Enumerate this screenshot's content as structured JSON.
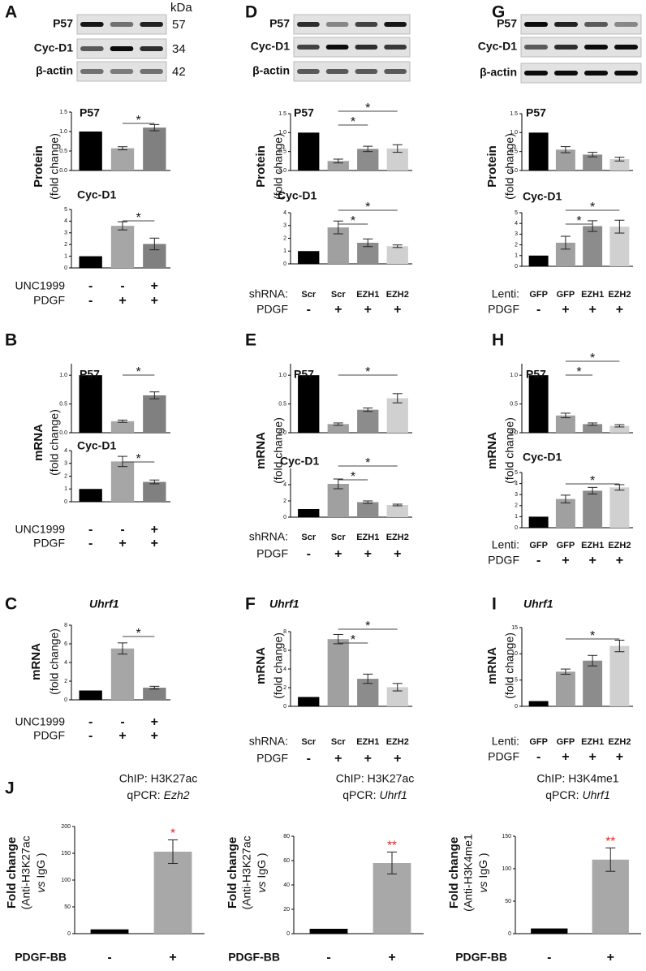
{
  "blots": [
    {
      "labels": [
        "P57",
        "Cyc-D1",
        "β-actin"
      ],
      "kda_header": "kDa",
      "kda": [
        "57",
        "34",
        "42"
      ]
    },
    {
      "labels": [
        "P57",
        "Cyc-D1",
        "β-actin"
      ]
    },
    {
      "labels": [
        "P57",
        "Cyc-D1",
        "β-actin"
      ]
    }
  ],
  "chart_data": [
    {
      "type": "bar",
      "panel": "A",
      "title": "P57",
      "ylabel": [
        "Protein",
        "(fold change)"
      ],
      "values": [
        1.0,
        0.57,
        1.1
      ],
      "errors": [
        null,
        0.04,
        0.08
      ],
      "colors": [
        "#000000",
        "#a6a6a6",
        "#808080"
      ],
      "ylim": [
        0,
        1.5
      ],
      "yticks": [
        {
          "value": 0,
          "label": "0.0"
        },
        {
          "value": 0.5,
          "label": "0.5"
        },
        {
          "value": 1.0,
          "label": "1.0"
        },
        {
          "value": 1.5,
          "label": "1.5"
        }
      ],
      "significance": [
        {
          "from": 1,
          "to": 2,
          "label": "*"
        }
      ]
    },
    {
      "type": "bar",
      "title": "Cyc-D1",
      "values": [
        1.0,
        3.6,
        2.05
      ],
      "errors": [
        null,
        0.35,
        0.5
      ],
      "colors": [
        "#000000",
        "#a6a6a6",
        "#808080"
      ],
      "ylim": [
        0,
        5
      ],
      "yticks": [
        0,
        1,
        2,
        3,
        4,
        5
      ],
      "significance": [
        {
          "from": 1,
          "to": 2,
          "label": "*"
        }
      ],
      "conditions": [
        {
          "label": "UNC1999",
          "values": [
            "-",
            "-",
            "+"
          ]
        },
        {
          "label": "PDGF",
          "values": [
            "-",
            "+",
            "+"
          ]
        }
      ]
    },
    {
      "type": "bar",
      "panel": "D",
      "title": "P57",
      "ylabel": [
        "Protein",
        "(fold change)"
      ],
      "values": [
        1.0,
        0.25,
        0.57,
        0.58
      ],
      "errors": [
        null,
        0.05,
        0.07,
        0.1
      ],
      "colors": [
        "#000000",
        "#a0a0a0",
        "#8c8c8c",
        "#d0d0d0"
      ],
      "ylim": [
        0,
        1.5
      ],
      "yticks": [
        {
          "value": 0,
          "label": "0.0"
        },
        {
          "value": 0.5,
          "label": "0.5"
        },
        {
          "value": 1.0,
          "label": "1.0"
        },
        {
          "value": 1.5,
          "label": "1.5"
        }
      ],
      "significance": [
        {
          "from": 1,
          "to": 2,
          "label": "*"
        },
        {
          "from": 1,
          "to": 3,
          "label": "*"
        }
      ]
    },
    {
      "type": "bar",
      "title": "Cyc-D1",
      "values": [
        1.0,
        2.85,
        1.65,
        1.38
      ],
      "errors": [
        null,
        0.5,
        0.3,
        0.1
      ],
      "colors": [
        "#000000",
        "#a0a0a0",
        "#8c8c8c",
        "#d0d0d0"
      ],
      "ylim": [
        0,
        4
      ],
      "yticks": [
        0,
        1,
        2,
        3,
        4
      ],
      "significance": [
        {
          "from": 1,
          "to": 2,
          "label": "*"
        },
        {
          "from": 1,
          "to": 3,
          "label": "*"
        }
      ],
      "conditions": [
        {
          "label": "shRNA:",
          "values": [
            "Scr",
            "Scr",
            "EZH1",
            "EZH2"
          ]
        },
        {
          "label": "PDGF",
          "values": [
            "-",
            "+",
            "+",
            "+"
          ]
        }
      ]
    },
    {
      "type": "bar",
      "panel": "G",
      "title": "P57",
      "ylabel": [
        "Protein",
        "(fold change)"
      ],
      "values": [
        1.0,
        0.55,
        0.42,
        0.3
      ],
      "errors": [
        null,
        0.08,
        0.06,
        0.05
      ],
      "colors": [
        "#000000",
        "#a0a0a0",
        "#8c8c8c",
        "#d0d0d0"
      ],
      "ylim": [
        0,
        1.5
      ],
      "yticks": [
        {
          "value": 0,
          "label": "0.0"
        },
        {
          "value": 0.5,
          "label": "0.5"
        },
        {
          "value": 1.0,
          "label": "1.0"
        },
        {
          "value": 1.5,
          "label": "1.5"
        }
      ]
    },
    {
      "type": "bar",
      "title": "Cyc-D1",
      "values": [
        1.0,
        2.2,
        3.75,
        3.7
      ],
      "errors": [
        null,
        0.6,
        0.5,
        0.6
      ],
      "colors": [
        "#000000",
        "#a0a0a0",
        "#8c8c8c",
        "#d0d0d0"
      ],
      "ylim": [
        0,
        5
      ],
      "yticks": [
        0,
        1,
        2,
        3,
        4,
        5
      ],
      "significance": [
        {
          "from": 1,
          "to": 2,
          "label": "*"
        },
        {
          "from": 1,
          "to": 3,
          "label": "*"
        }
      ],
      "conditions": [
        {
          "label": "Lenti:",
          "values": [
            "GFP",
            "GFP",
            "EZH1",
            "EZH2"
          ]
        },
        {
          "label": "PDGF",
          "values": [
            "-",
            "+",
            "+",
            "+"
          ]
        }
      ]
    },
    {
      "type": "bar",
      "panel": "B",
      "title": "P57",
      "ylabel": [
        "mRNA",
        "(fold change)"
      ],
      "values": [
        1.0,
        0.2,
        0.65
      ],
      "errors": [
        null,
        0.02,
        0.06
      ],
      "colors": [
        "#000000",
        "#a6a6a6",
        "#808080"
      ],
      "ylim": [
        0,
        1.2
      ],
      "yticks": [
        {
          "value": 0,
          "label": "0.0"
        },
        {
          "value": 0.5,
          "label": "0.5"
        },
        {
          "value": 1.0,
          "label": "1.0"
        }
      ],
      "significance": [
        {
          "from": 1,
          "to": 2,
          "label": "*"
        }
      ]
    },
    {
      "type": "bar",
      "title": "Cyc-D1",
      "values": [
        1.0,
        3.15,
        1.55
      ],
      "errors": [
        null,
        0.4,
        0.15
      ],
      "colors": [
        "#000000",
        "#a6a6a6",
        "#808080"
      ],
      "ylim": [
        0,
        4
      ],
      "yticks": [
        0,
        1,
        2,
        3,
        4
      ],
      "significance": [
        {
          "from": 1,
          "to": 2,
          "label": "*"
        }
      ],
      "conditions": [
        {
          "label": "UNC1999",
          "values": [
            "-",
            "-",
            "+"
          ]
        },
        {
          "label": "PDGF",
          "values": [
            "-",
            "+",
            "+"
          ]
        }
      ]
    },
    {
      "type": "bar",
      "panel": "E",
      "title": "P57",
      "ylabel": [
        "mRNA",
        "(fold change)"
      ],
      "values": [
        1.0,
        0.15,
        0.4,
        0.6
      ],
      "errors": [
        null,
        0.02,
        0.03,
        0.08
      ],
      "colors": [
        "#000000",
        "#a0a0a0",
        "#8c8c8c",
        "#d0d0d0"
      ],
      "ylim": [
        0,
        1.2
      ],
      "yticks": [
        {
          "value": 0,
          "label": "0.0"
        },
        {
          "value": 0.5,
          "label": "0.5"
        },
        {
          "value": 1.0,
          "label": "1.0"
        }
      ],
      "significance": [
        {
          "from": 1,
          "to": 3,
          "label": "*"
        }
      ]
    },
    {
      "type": "bar",
      "title": "Cyc-D1",
      "values": [
        1.0,
        4.1,
        1.85,
        1.5
      ],
      "errors": [
        null,
        0.6,
        0.15,
        0.1
      ],
      "colors": [
        "#000000",
        "#a0a0a0",
        "#8c8c8c",
        "#d0d0d0"
      ],
      "ylim": [
        0,
        6
      ],
      "yticks": [
        0,
        2,
        4
      ],
      "significance": [
        {
          "from": 1,
          "to": 2,
          "label": "*"
        },
        {
          "from": 1,
          "to": 3,
          "label": "*"
        }
      ],
      "conditions": [
        {
          "label": "shRNA:",
          "values": [
            "Scr",
            "Scr",
            "EZH1",
            "EZH2"
          ]
        },
        {
          "label": "PDGF",
          "values": [
            "-",
            "+",
            "+",
            "+"
          ]
        }
      ]
    },
    {
      "type": "bar",
      "panel": "H",
      "title": "P57",
      "ylabel": [
        "mRNA",
        "(fold change)"
      ],
      "values": [
        1.0,
        0.3,
        0.15,
        0.12
      ],
      "errors": [
        null,
        0.04,
        0.02,
        0.02
      ],
      "colors": [
        "#000000",
        "#a0a0a0",
        "#8c8c8c",
        "#d0d0d0"
      ],
      "ylim": [
        0,
        1.2
      ],
      "yticks": [
        {
          "value": 0,
          "label": "0.0"
        },
        {
          "value": 0.5,
          "label": "0.5"
        },
        {
          "value": 1.0,
          "label": "1.0"
        }
      ],
      "significance": [
        {
          "from": 1,
          "to": 2,
          "label": "*"
        },
        {
          "from": 1,
          "to": 3,
          "label": "*"
        }
      ]
    },
    {
      "type": "bar",
      "title": "Cyc-D1",
      "values": [
        1.0,
        2.6,
        3.35,
        3.65
      ],
      "errors": [
        null,
        0.35,
        0.3,
        0.25
      ],
      "colors": [
        "#000000",
        "#a0a0a0",
        "#8c8c8c",
        "#d0d0d0"
      ],
      "ylim": [
        0,
        5
      ],
      "yticks": [
        0,
        1,
        2,
        3,
        4,
        5
      ],
      "significance": [
        {
          "from": 1,
          "to": 3,
          "label": "*"
        }
      ],
      "conditions": [
        {
          "label": "Lenti:",
          "values": [
            "GFP",
            "GFP",
            "EZH1",
            "EZH2"
          ]
        },
        {
          "label": "PDGF",
          "values": [
            "-",
            "+",
            "+",
            "+"
          ]
        }
      ]
    },
    {
      "type": "bar",
      "panel": "C",
      "title": "Uhrf1",
      "title_italic": true,
      "ylabel": [
        "mRNA",
        "(fold change)"
      ],
      "values": [
        1.0,
        5.5,
        1.3
      ],
      "errors": [
        null,
        0.6,
        0.15
      ],
      "colors": [
        "#000000",
        "#a6a6a6",
        "#808080"
      ],
      "ylim": [
        0,
        8
      ],
      "yticks": [
        0,
        2,
        4,
        6,
        8
      ],
      "significance": [
        {
          "from": 1,
          "to": 2,
          "label": "*"
        }
      ],
      "conditions": [
        {
          "label": "UNC1999",
          "values": [
            "-",
            "-",
            "+"
          ]
        },
        {
          "label": "PDGF",
          "values": [
            "-",
            "+",
            "+"
          ]
        }
      ]
    },
    {
      "type": "bar",
      "panel": "F",
      "title": "Uhrf1",
      "title_italic": true,
      "ylabel": [
        "mRNA",
        "(fold change)"
      ],
      "values": [
        1.0,
        7.2,
        2.95,
        2.05
      ],
      "errors": [
        null,
        0.5,
        0.5,
        0.4
      ],
      "colors": [
        "#000000",
        "#a0a0a0",
        "#8c8c8c",
        "#d0d0d0"
      ],
      "ylim": [
        0,
        8
      ],
      "yticks": [
        0,
        2,
        4,
        6,
        8
      ],
      "significance": [
        {
          "from": 1,
          "to": 2,
          "label": "*"
        },
        {
          "from": 1,
          "to": 3,
          "label": "*"
        }
      ],
      "conditions": [
        {
          "label": "shRNA:",
          "values": [
            "Scr",
            "Scr",
            "EZH1",
            "EZH2"
          ]
        },
        {
          "label": "PDGF",
          "values": [
            "-",
            "+",
            "+",
            "+"
          ]
        }
      ]
    },
    {
      "type": "bar",
      "panel": "I",
      "title": "Uhrf1",
      "title_italic": true,
      "ylabel": [
        "mRNA",
        "(fold change)"
      ],
      "values": [
        1.0,
        6.6,
        8.7,
        11.5
      ],
      "errors": [
        null,
        0.5,
        1.0,
        1.1
      ],
      "colors": [
        "#000000",
        "#a0a0a0",
        "#8c8c8c",
        "#d0d0d0"
      ],
      "ylim": [
        0,
        15
      ],
      "yticks": [
        0,
        5,
        10,
        15
      ],
      "significance": [
        {
          "from": 1,
          "to": 3,
          "label": "*"
        }
      ],
      "conditions": [
        {
          "label": "Lenti:",
          "values": [
            "GFP",
            "GFP",
            "EZH1",
            "EZH2"
          ]
        },
        {
          "label": "PDGF",
          "values": [
            "-",
            "+",
            "+",
            "+"
          ]
        }
      ]
    },
    {
      "type": "bar",
      "panel": "J",
      "title": "ChIP: H3K27ac",
      "subtitle": "qPCR:",
      "subtitle_gene": "Ezh2",
      "ylabel": [
        "Fold change",
        "(Anti-H3K27ac"
      ],
      "ylabel_vs": "vs",
      "ylabel_end": "IgG )",
      "values": [
        8,
        153
      ],
      "errors": [
        null,
        22
      ],
      "colors": [
        "#000000",
        "#a8a8a8"
      ],
      "ylim": [
        0,
        200
      ],
      "yticks": [
        0,
        50,
        100,
        150,
        200
      ],
      "significance": [
        {
          "bar": 1,
          "label": "*"
        }
      ],
      "significance_color": "#e0201b",
      "conditions": [
        {
          "label": "PDGF-BB",
          "values": [
            "-",
            "+"
          ]
        }
      ]
    },
    {
      "type": "bar",
      "title": "ChIP: H3K27ac",
      "subtitle": "qPCR:",
      "subtitle_gene": "Uhrf1",
      "ylabel": [
        "Fold change",
        "(Anti-H3K27ac"
      ],
      "ylabel_vs": "vs",
      "ylabel_end": "IgG )",
      "values": [
        4,
        58
      ],
      "errors": [
        null,
        9
      ],
      "colors": [
        "#000000",
        "#a8a8a8"
      ],
      "ylim": [
        0,
        80
      ],
      "yticks": [
        0,
        20,
        40,
        60,
        80
      ],
      "significance": [
        {
          "bar": 1,
          "label": "**"
        }
      ],
      "significance_color": "#e0201b",
      "conditions": [
        {
          "label": "PDGF-BB",
          "values": [
            "-",
            "+"
          ]
        }
      ]
    },
    {
      "type": "bar",
      "title": "ChIP: H3K4me1",
      "subtitle": "qPCR:",
      "subtitle_gene": "Uhrf1",
      "ylabel": [
        "Fold change",
        "(Anti-H3K4me1"
      ],
      "ylabel_vs": "vs",
      "ylabel_end": "IgG )",
      "values": [
        8,
        114
      ],
      "errors": [
        null,
        18
      ],
      "colors": [
        "#000000",
        "#a8a8a8"
      ],
      "ylim": [
        0,
        150
      ],
      "yticks": [
        0,
        50,
        100,
        150
      ],
      "significance": [
        {
          "bar": 1,
          "label": "**"
        }
      ],
      "significance_color": "#e0201b",
      "conditions": [
        {
          "label": "PDGF-BB",
          "values": [
            "-",
            "+"
          ]
        }
      ]
    }
  ]
}
